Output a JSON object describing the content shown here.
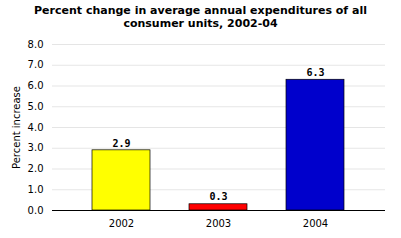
{
  "chart_data": {
    "type": "bar",
    "title": "Percent change in average annual expenditures of all\nconsumer units, 2002-04",
    "categories": [
      "2002",
      "2003",
      "2004"
    ],
    "values": [
      2.9,
      0.3,
      6.3
    ],
    "colors": [
      "#FFFF00",
      "#FF0000",
      "#0000CC"
    ],
    "ylabel": "Percent increase",
    "ylim": [
      0,
      8.0
    ],
    "yticks": [
      {
        "value": 0,
        "label": "0.0"
      },
      {
        "value": 1,
        "label": "1.0"
      },
      {
        "value": 2,
        "label": "2.0"
      },
      {
        "value": 3,
        "label": "3.0"
      },
      {
        "value": 4,
        "label": "4.0"
      },
      {
        "value": 5,
        "label": "5.0"
      },
      {
        "value": 6,
        "label": "6.0"
      },
      {
        "value": 7,
        "label": "7.0"
      },
      {
        "value": 8,
        "label": "8.0"
      }
    ],
    "grid": true,
    "data_labels": true
  }
}
